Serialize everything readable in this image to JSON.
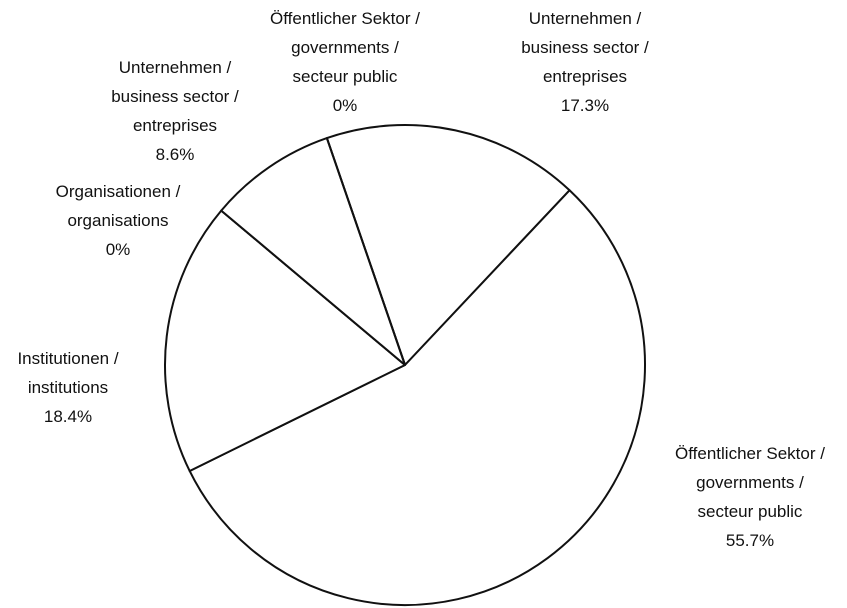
{
  "chart_data": {
    "type": "pie",
    "categories": [
      "Unternehmen /\nbusiness sector /\nentreprises",
      "Öffentlicher Sektor /\ngovernments /\nsecteur public",
      "Institutionen /\ninstitutions",
      "Organisationen /\norganisations",
      "Unternehmen /\nbusiness sector /\nentreprises",
      "Öffentlicher Sektor /\ngovernments /\nsecteur public"
    ],
    "values": [
      17.3,
      55.7,
      18.4,
      0,
      8.6,
      0
    ],
    "value_labels": [
      "17.3%",
      "55.7%",
      "18.4%",
      "0%",
      "8.6%",
      "0%"
    ],
    "color": "#ffffff"
  }
}
